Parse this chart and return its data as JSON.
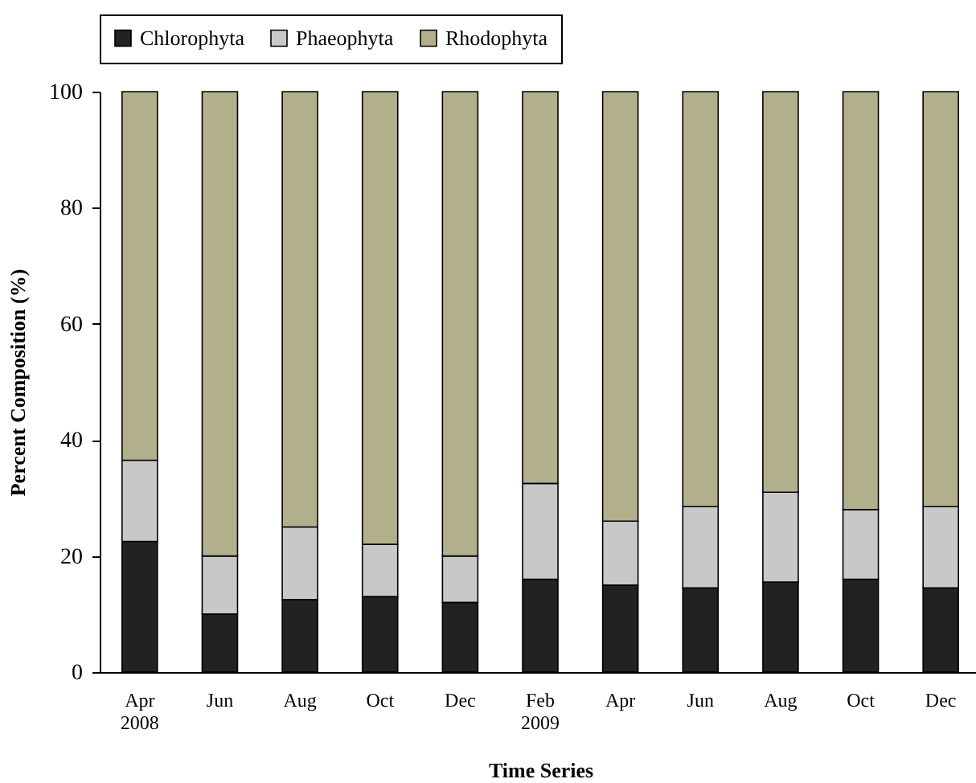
{
  "chart_data": {
    "type": "bar",
    "stacked": true,
    "xlabel": "Time Series",
    "ylabel": "Percent Composition (%)",
    "categories": [
      "Apr 2008",
      "Jun",
      "Aug",
      "Oct",
      "Dec",
      "Feb 2009",
      "Apr",
      "Jun",
      "Aug",
      "Oct",
      "Dec"
    ],
    "series": [
      {
        "name": "Chlorophyta",
        "color": "#222222",
        "values": [
          22.5,
          10,
          12.5,
          13,
          12,
          16,
          15,
          14.5,
          15.5,
          16,
          14.5
        ]
      },
      {
        "name": "Phaeophyta",
        "color": "#c8c8c8",
        "values": [
          14,
          10,
          12.5,
          9,
          8,
          16.5,
          11,
          14,
          15.5,
          12,
          14
        ]
      },
      {
        "name": "Rhodophyta",
        "color": "#b2b08c",
        "values": [
          63.5,
          80,
          75,
          78,
          80,
          67.5,
          74,
          71.5,
          69,
          72,
          71.5
        ]
      }
    ],
    "ylim": [
      0,
      100
    ],
    "yticks": [
      0,
      20,
      40,
      60,
      80,
      100
    ],
    "grid": false,
    "legend": "top"
  }
}
